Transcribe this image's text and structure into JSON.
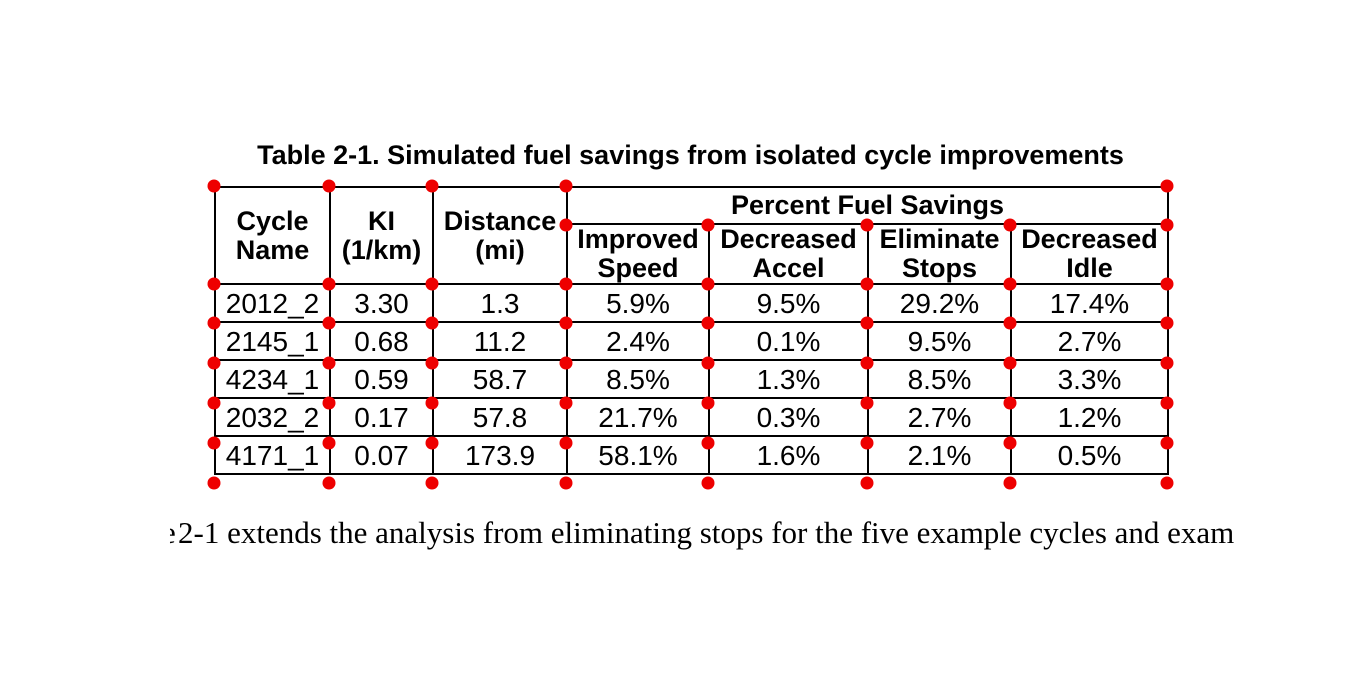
{
  "title": "Table 2-1. Simulated fuel savings from isolated cycle improvements",
  "table": {
    "columns": [
      "Cycle Name",
      "KI (1/km)",
      "Distance (mi)"
    ],
    "group_header": "Percent Fuel Savings",
    "sub_columns": [
      "Improved Speed",
      "Decreased Accel",
      "Eliminate Stops",
      "Decreased Idle"
    ],
    "rows": [
      {
        "cells": [
          "2012_2",
          "3.30",
          "1.3",
          "5.9%",
          "9.5%",
          "29.2%",
          "17.4%"
        ]
      },
      {
        "cells": [
          "2145_1",
          "0.68",
          "11.2",
          "2.4%",
          "0.1%",
          "9.5%",
          "2.7%"
        ]
      },
      {
        "cells": [
          "4234_1",
          "0.59",
          "58.7",
          "8.5%",
          "1.3%",
          "8.5%",
          "3.3%"
        ]
      },
      {
        "cells": [
          "2032_2",
          "0.17",
          "57.8",
          "21.7%",
          "0.3%",
          "2.7%",
          "1.2%"
        ]
      },
      {
        "cells": [
          "4171_1",
          "0.07",
          "173.9",
          "58.1%",
          "1.6%",
          "2.1%",
          "0.5%"
        ]
      }
    ]
  },
  "body_text": {
    "partial_char": "e",
    "visible_line": "2-1 extends the analysis from eliminating stops for the five example cycles and exam"
  },
  "markers": {
    "color": "#ee0000"
  },
  "page": {
    "background": "#ffffff",
    "border_color": "#000000"
  }
}
